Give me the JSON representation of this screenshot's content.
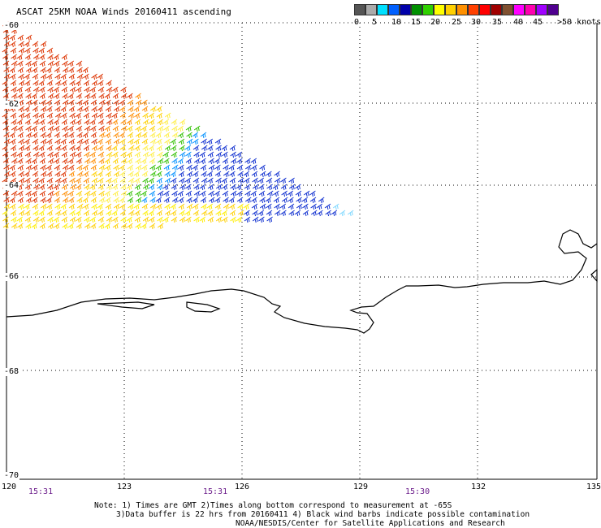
{
  "title": "ASCAT 25KM NOAA Winds 20160411 ascending",
  "color_scale": {
    "colors": [
      "#555555",
      "#aaaaaa",
      "#00e0ff",
      "#0060ff",
      "#0000aa",
      "#009000",
      "#30d000",
      "#ffff00",
      "#ffd000",
      "#ff9000",
      "#ff4000",
      "#ff0000",
      "#a00000",
      "#805030",
      "#ff00ff",
      "#ff00b0",
      "#a000ff",
      "#500090"
    ],
    "labels": [
      "0",
      "5",
      "10",
      "15",
      "20",
      "25",
      "30",
      "35",
      "40",
      "45",
      ">50 knots"
    ]
  },
  "lat_labels": [
    "-60",
    "-62",
    "-64",
    "-66",
    "-68",
    "-70"
  ],
  "lon_labels": [
    "120",
    "123",
    "126",
    "129",
    "132",
    "135"
  ],
  "time_labels": [
    "15:31",
    "15:31",
    "15:30"
  ],
  "notes": [
    "Note: 1) Times are GMT 2)Times along bottom correspond to measurement at -65S",
    "3)Data buffer is 22 hrs from 20160411 4) Black wind barbs indicate possible contamination",
    "NOAA/NESDIS/Center for Satellite Applications and Research"
  ],
  "map_extent": {
    "lon_min": 120,
    "lon_max": 135,
    "lat_min": -70,
    "lat_max": -60
  }
}
